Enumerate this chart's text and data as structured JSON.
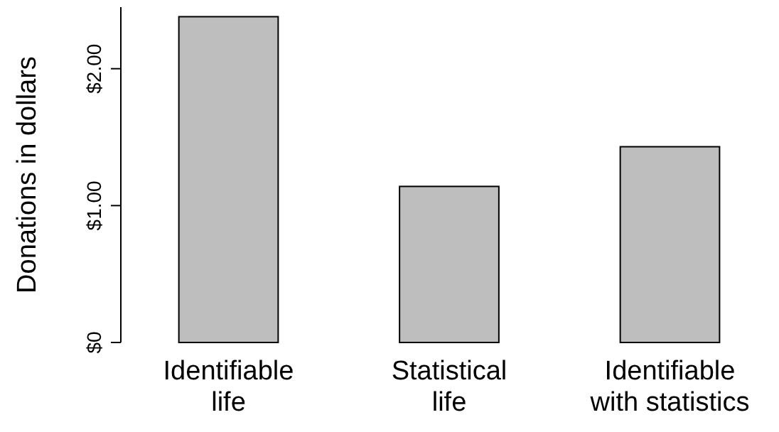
{
  "chart_data": {
    "type": "bar",
    "ylabel": "Donations in dollars",
    "categories": [
      "Identifiable life",
      "Statistical life",
      "Identifiable with statistics"
    ],
    "values": [
      2.38,
      1.14,
      1.43
    ],
    "color": "#bebebe",
    "ylim": [
      0,
      2.45
    ],
    "yticks": [
      {
        "value": 0,
        "label": "$0"
      },
      {
        "value": 1,
        "label": "$1.00"
      },
      {
        "value": 2,
        "label": "$2.00"
      }
    ],
    "grid": false
  }
}
